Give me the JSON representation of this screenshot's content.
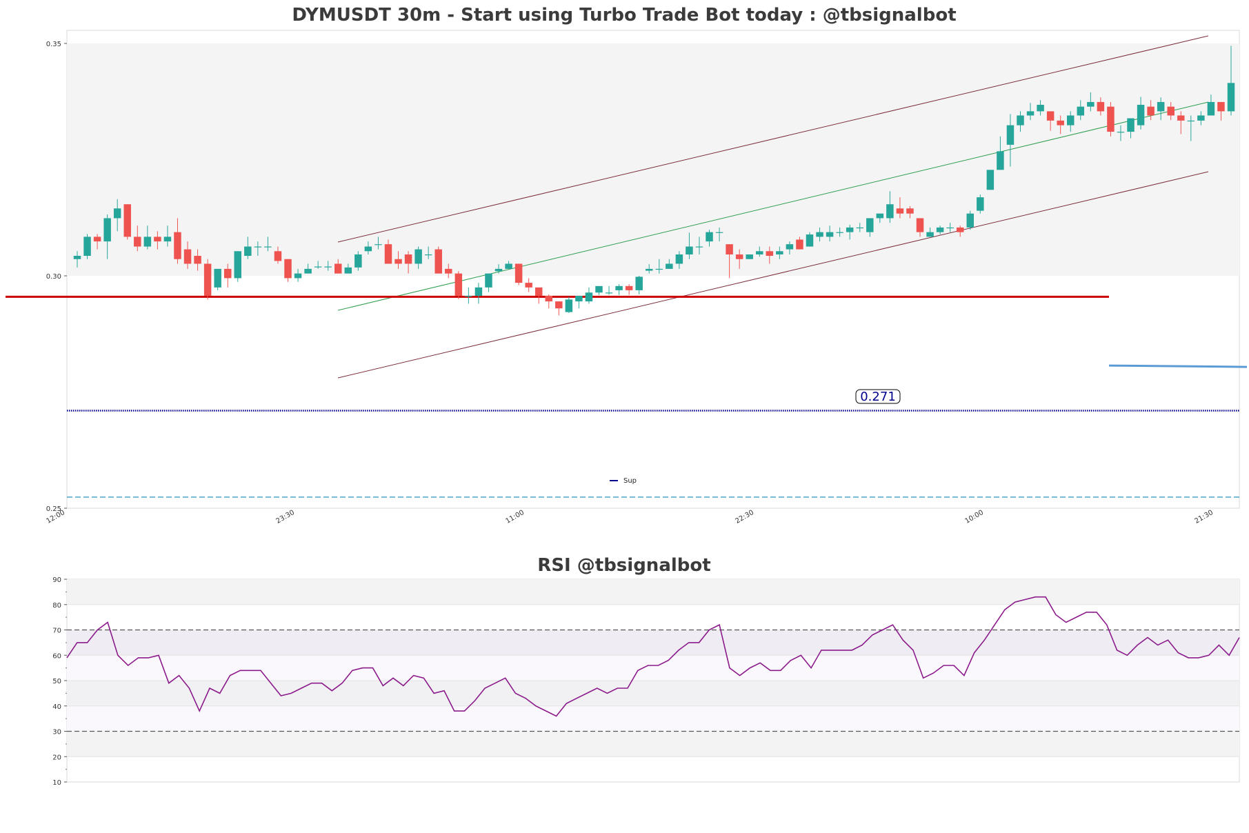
{
  "chart_data": [
    {
      "type": "candlestick",
      "title": "DYMUSDT 30m - Start using Turbo Trade Bot today : @tbsignalbot",
      "x_tick_labels": [
        "12:00",
        "23:30",
        "11:00",
        "22:30",
        "10:00",
        "21:30"
      ],
      "y_tick_labels": [
        "0.35",
        "0.30",
        "0.25"
      ],
      "ylim": [
        0.25,
        0.353
      ],
      "candles": [
        [
          0.3036,
          0.3043,
          0.3018,
          0.3053
        ],
        [
          0.3043,
          0.3084,
          0.3036,
          0.309
        ],
        [
          0.3084,
          0.3074,
          0.3057,
          0.309
        ],
        [
          0.3074,
          0.3124,
          0.3036,
          0.3132
        ],
        [
          0.3124,
          0.3145,
          0.3096,
          0.3165
        ],
        [
          0.3154,
          0.3084,
          0.3078,
          0.3154
        ],
        [
          0.3084,
          0.3063,
          0.3053,
          0.3108
        ],
        [
          0.3063,
          0.3084,
          0.3057,
          0.3108
        ],
        [
          0.3084,
          0.3074,
          0.3057,
          0.3096
        ],
        [
          0.3074,
          0.3084,
          0.3063,
          0.3108
        ],
        [
          0.3094,
          0.3036,
          0.3026,
          0.3124
        ],
        [
          0.3057,
          0.3026,
          0.3015,
          0.3074
        ],
        [
          0.3043,
          0.3026,
          0.3011,
          0.3057
        ],
        [
          0.3026,
          0.2957,
          0.2949,
          0.3036
        ],
        [
          0.2975,
          0.3015,
          0.2969,
          0.3015
        ],
        [
          0.3015,
          0.2995,
          0.2975,
          0.3026
        ],
        [
          0.2995,
          0.3053,
          0.2987,
          0.3053
        ],
        [
          0.3043,
          0.3063,
          0.3036,
          0.3084
        ],
        [
          0.3063,
          0.3063,
          0.3043,
          0.3074
        ],
        [
          0.3063,
          0.3063,
          0.3053,
          0.3084
        ],
        [
          0.3053,
          0.3032,
          0.3026,
          0.3063
        ],
        [
          0.3036,
          0.2995,
          0.2987,
          0.3036
        ],
        [
          0.2995,
          0.3005,
          0.2987,
          0.3015
        ],
        [
          0.3005,
          0.3015,
          0.3005,
          0.3026
        ],
        [
          0.302,
          0.302,
          0.3015,
          0.3032
        ],
        [
          0.302,
          0.302,
          0.3011,
          0.3032
        ],
        [
          0.3026,
          0.3005,
          0.3005,
          0.3036
        ],
        [
          0.3005,
          0.3018,
          0.3005,
          0.3026
        ],
        [
          0.3018,
          0.3046,
          0.3011,
          0.3053
        ],
        [
          0.3053,
          0.3063,
          0.3046,
          0.3074
        ],
        [
          0.3068,
          0.3068,
          0.3057,
          0.3084
        ],
        [
          0.3068,
          0.3026,
          0.3026,
          0.3078
        ],
        [
          0.3036,
          0.3026,
          0.3015,
          0.3053
        ],
        [
          0.3046,
          0.3026,
          0.3005,
          0.3053
        ],
        [
          0.3026,
          0.3057,
          0.3015,
          0.3063
        ],
        [
          0.3046,
          0.3046,
          0.3036,
          0.3063
        ],
        [
          0.3057,
          0.3005,
          0.3005,
          0.3063
        ],
        [
          0.3015,
          0.3005,
          0.2995,
          0.3026
        ],
        [
          0.3005,
          0.2957,
          0.295,
          0.301
        ],
        [
          0.2957,
          0.2957,
          0.294,
          0.2975
        ],
        [
          0.2957,
          0.2975,
          0.294,
          0.2985
        ],
        [
          0.2975,
          0.3005,
          0.2965,
          0.3005
        ],
        [
          0.301,
          0.3015,
          0.3005,
          0.3025
        ],
        [
          0.3015,
          0.3026,
          0.3015,
          0.3032
        ],
        [
          0.3026,
          0.2985,
          0.298,
          0.3026
        ],
        [
          0.2985,
          0.2975,
          0.2965,
          0.2995
        ],
        [
          0.2975,
          0.2957,
          0.294,
          0.2975
        ],
        [
          0.2957,
          0.2945,
          0.293,
          0.296
        ],
        [
          0.2945,
          0.293,
          0.2915,
          0.2945
        ],
        [
          0.2922,
          0.2949,
          0.292,
          0.2955
        ],
        [
          0.2945,
          0.2957,
          0.293,
          0.2957
        ],
        [
          0.2945,
          0.2964,
          0.294,
          0.2975
        ],
        [
          0.2964,
          0.2978,
          0.2959,
          0.2978
        ],
        [
          0.2964,
          0.2964,
          0.2959,
          0.2978
        ],
        [
          0.2969,
          0.2978,
          0.2959,
          0.2982
        ],
        [
          0.2978,
          0.2969,
          0.2959,
          0.2982
        ],
        [
          0.2969,
          0.2998,
          0.296,
          0.3
        ],
        [
          0.3011,
          0.3015,
          0.3005,
          0.3025
        ],
        [
          0.3015,
          0.3015,
          0.3005,
          0.3036
        ],
        [
          0.3015,
          0.3026,
          0.3015,
          0.3036
        ],
        [
          0.3026,
          0.3046,
          0.3015,
          0.3053
        ],
        [
          0.3046,
          0.3063,
          0.3036,
          0.3093
        ],
        [
          0.3063,
          0.3063,
          0.3046,
          0.3084
        ],
        [
          0.3074,
          0.3094,
          0.3063,
          0.3099
        ],
        [
          0.3094,
          0.3094,
          0.3074,
          0.3104
        ],
        [
          0.3068,
          0.3046,
          0.2995,
          0.3068
        ],
        [
          0.3046,
          0.3036,
          0.3015,
          0.3057
        ],
        [
          0.3036,
          0.3046,
          0.3036,
          0.3046
        ],
        [
          0.3046,
          0.3053,
          0.3041,
          0.3063
        ],
        [
          0.3053,
          0.3043,
          0.3026,
          0.3063
        ],
        [
          0.3046,
          0.3053,
          0.3036,
          0.3063
        ],
        [
          0.3057,
          0.3068,
          0.3046,
          0.3074
        ],
        [
          0.3078,
          0.3057,
          0.3057,
          0.3084
        ],
        [
          0.3063,
          0.3089,
          0.3063,
          0.3094
        ],
        [
          0.3084,
          0.3094,
          0.3074,
          0.3104
        ],
        [
          0.3084,
          0.3094,
          0.3074,
          0.3108
        ],
        [
          0.3094,
          0.3094,
          0.3084,
          0.3104
        ],
        [
          0.3094,
          0.3104,
          0.3078,
          0.311
        ],
        [
          0.3104,
          0.3104,
          0.3094,
          0.3114
        ],
        [
          0.3094,
          0.3124,
          0.3084,
          0.3124
        ],
        [
          0.3124,
          0.3134,
          0.3114,
          0.3134
        ],
        [
          0.3124,
          0.3154,
          0.3114,
          0.3182
        ],
        [
          0.3145,
          0.3134,
          0.3124,
          0.3169
        ],
        [
          0.3145,
          0.3134,
          0.3124,
          0.315
        ],
        [
          0.3124,
          0.3094,
          0.3084,
          0.3124
        ],
        [
          0.3084,
          0.3094,
          0.3084,
          0.3104
        ],
        [
          0.3094,
          0.3104,
          0.3089,
          0.3108
        ],
        [
          0.3104,
          0.3104,
          0.3094,
          0.3114
        ],
        [
          0.3104,
          0.3094,
          0.3084,
          0.3108
        ],
        [
          0.3104,
          0.3134,
          0.3099,
          0.314
        ],
        [
          0.314,
          0.3169,
          0.3134,
          0.3175
        ],
        [
          0.3185,
          0.3228,
          0.3185,
          0.3228
        ],
        [
          0.3228,
          0.3268,
          0.3228,
          0.33
        ],
        [
          0.3282,
          0.3324,
          0.3235,
          0.3348
        ],
        [
          0.3324,
          0.3345,
          0.331,
          0.3354
        ],
        [
          0.3345,
          0.3354,
          0.3335,
          0.3372
        ],
        [
          0.3354,
          0.3368,
          0.3345,
          0.3378
        ],
        [
          0.3354,
          0.3334,
          0.3312,
          0.3354
        ],
        [
          0.3334,
          0.3324,
          0.3305,
          0.3345
        ],
        [
          0.3324,
          0.3345,
          0.331,
          0.3354
        ],
        [
          0.3345,
          0.3364,
          0.3335,
          0.3378
        ],
        [
          0.3364,
          0.3374,
          0.3354,
          0.3395
        ],
        [
          0.3374,
          0.3354,
          0.3345,
          0.3384
        ],
        [
          0.3364,
          0.331,
          0.33,
          0.3374
        ],
        [
          0.331,
          0.331,
          0.329,
          0.3324
        ],
        [
          0.331,
          0.3339,
          0.3296,
          0.3339
        ],
        [
          0.3324,
          0.3368,
          0.3315,
          0.3385
        ],
        [
          0.3364,
          0.3345,
          0.3335,
          0.3378
        ],
        [
          0.3354,
          0.3374,
          0.3335,
          0.3384
        ],
        [
          0.3364,
          0.3345,
          0.3335,
          0.3374
        ],
        [
          0.3345,
          0.3334,
          0.3305,
          0.3354
        ],
        [
          0.3334,
          0.3334,
          0.329,
          0.3345
        ],
        [
          0.3334,
          0.3345,
          0.3324,
          0.3354
        ],
        [
          0.3345,
          0.3374,
          0.3345,
          0.339
        ],
        [
          0.3374,
          0.3354,
          0.3334,
          0.3374
        ],
        [
          0.3354,
          0.3415,
          0.3345,
          0.3495
        ]
      ],
      "up_color": "#26a69a",
      "down_color": "#ef5350",
      "horizontal_levels": [
        {
          "value": 0.2955,
          "color": "#cc0000",
          "style": "solid"
        },
        {
          "value": 0.2807,
          "color": "#5b9bd5",
          "style": "solid"
        },
        {
          "value": 0.271,
          "color": "#00008b",
          "style": "dotted"
        },
        {
          "value": 0.2524,
          "color": "#4aa3c8",
          "style": "dashed"
        }
      ],
      "level_label": "0.271",
      "legend": [
        {
          "name": "Sup",
          "color": "#00008b"
        }
      ],
      "channel": {
        "upper_color": "#7b2d3c",
        "middle_color": "#2e9e4e",
        "lower_color": "#7b2d3c"
      },
      "shaded_band": [
        0.3,
        0.353
      ]
    },
    {
      "type": "line",
      "title": "RSI @tbsignalbot",
      "y_tick_labels": [
        "90",
        "80",
        "70",
        "60",
        "50",
        "40",
        "30",
        "20",
        "10"
      ],
      "ylim": [
        10,
        90
      ],
      "overbought": 70,
      "oversold": 30,
      "line_color": "#8b1a8b",
      "values": [
        59,
        65,
        65,
        70,
        73,
        60,
        56,
        59,
        59,
        60,
        49,
        52,
        47,
        38,
        47,
        45,
        52,
        54,
        54,
        54,
        49,
        44,
        45,
        47,
        49,
        49,
        46,
        49,
        54,
        55,
        55,
        48,
        51,
        48,
        52,
        51,
        45,
        46,
        38,
        38,
        42,
        47,
        49,
        51,
        45,
        43,
        40,
        38,
        36,
        41,
        43,
        45,
        47,
        45,
        47,
        47,
        54,
        56,
        56,
        58,
        62,
        65,
        65,
        70,
        72,
        55,
        52,
        55,
        57,
        54,
        54,
        58,
        60,
        55,
        62,
        62,
        62,
        62,
        64,
        68,
        70,
        72,
        66,
        62,
        51,
        53,
        56,
        56,
        52,
        61,
        66,
        72,
        78,
        81,
        82,
        83,
        83,
        76,
        73,
        75,
        77,
        77,
        72,
        62,
        60,
        64,
        67,
        64,
        66,
        61,
        59,
        59,
        60,
        64,
        60,
        67
      ]
    }
  ]
}
